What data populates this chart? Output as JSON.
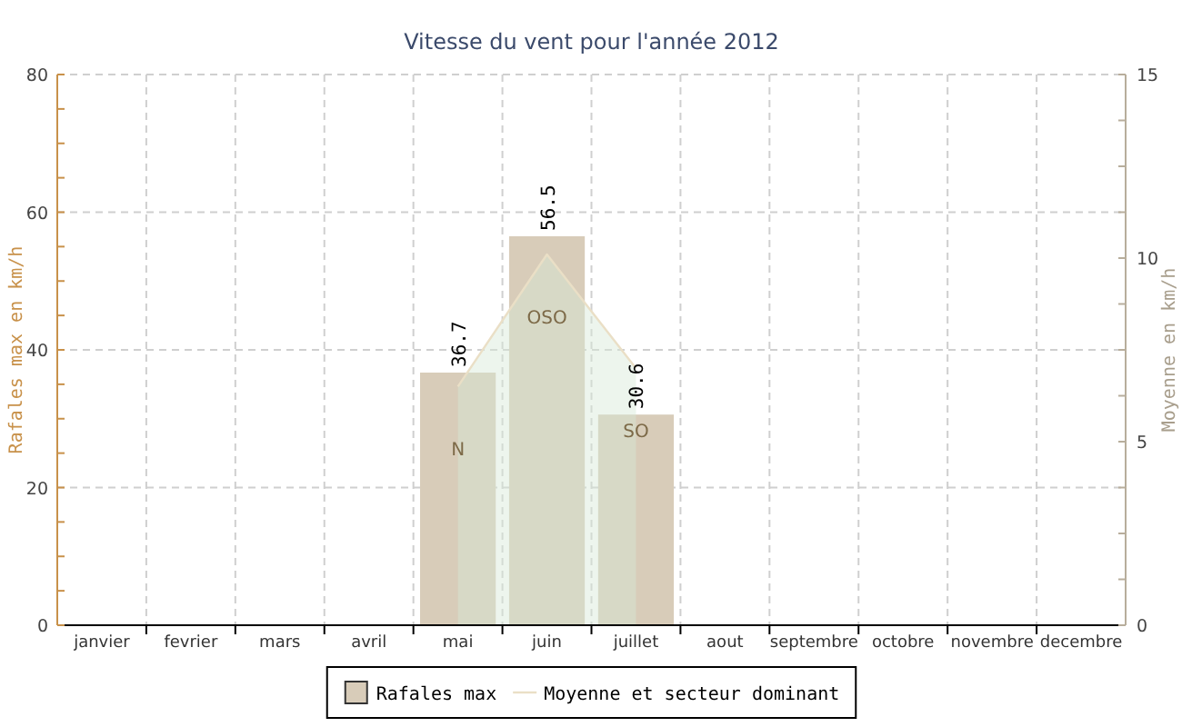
{
  "chart_data": {
    "type": "bar",
    "title": "Vitesse du vent pour l'année 2012",
    "ylabel": "Rafales max en km/h",
    "y2label": "Moyenne en km/h",
    "categories": [
      "janvier",
      "fevrier",
      "mars",
      "avril",
      "mai",
      "juin",
      "juillet",
      "aout",
      "septembre",
      "octobre",
      "novembre",
      "decembre"
    ],
    "series": [
      {
        "name": "Rafales max",
        "color": "#d8ccb9",
        "values": [
          null,
          null,
          null,
          null,
          36.7,
          56.5,
          30.6,
          null,
          null,
          null,
          null,
          null
        ],
        "value_labels": [
          null,
          null,
          null,
          null,
          "36.7",
          "56.5",
          "30.6",
          null,
          null,
          null,
          null,
          null
        ]
      },
      {
        "name": "Moyenne et secteur dominant",
        "type": "area",
        "axis": "y2",
        "color": "#eadfc6",
        "values": [
          null,
          null,
          null,
          null,
          6.5,
          10.1,
          7.0,
          null,
          null,
          null,
          null,
          null
        ],
        "value_labels": [
          null,
          null,
          null,
          null,
          "N",
          "OSO",
          "SO",
          null,
          null,
          null,
          null,
          null
        ]
      }
    ],
    "ylim": [
      0,
      80
    ],
    "yticks": [
      0,
      {
        "value": 5,
        "label": null
      },
      {
        "value": 10,
        "label": null
      },
      {
        "value": 15,
        "label": null
      },
      20,
      {
        "value": 25,
        "label": null
      },
      {
        "value": 30,
        "label": null
      },
      {
        "value": 35,
        "label": null
      },
      40,
      {
        "value": 45,
        "label": null
      },
      {
        "value": 50,
        "label": null
      },
      {
        "value": 55,
        "label": null
      },
      60,
      {
        "value": 65,
        "label": null
      },
      {
        "value": 70,
        "label": null
      },
      {
        "value": 75,
        "label": null
      },
      80
    ],
    "y2lim": [
      0,
      15
    ],
    "y2ticks": [
      0,
      {
        "value": 1.25,
        "label": null
      },
      {
        "value": 2.5,
        "label": null
      },
      {
        "value": 3.75,
        "label": null
      },
      5,
      {
        "value": 6.25,
        "label": null
      },
      {
        "value": 7.5,
        "label": null
      },
      {
        "value": 8.75,
        "label": null
      },
      10,
      {
        "value": 11.25,
        "label": null
      },
      {
        "value": 12.5,
        "label": null
      },
      {
        "value": 13.75,
        "label": null
      },
      15
    ],
    "grid": true,
    "legend": "bottom"
  }
}
